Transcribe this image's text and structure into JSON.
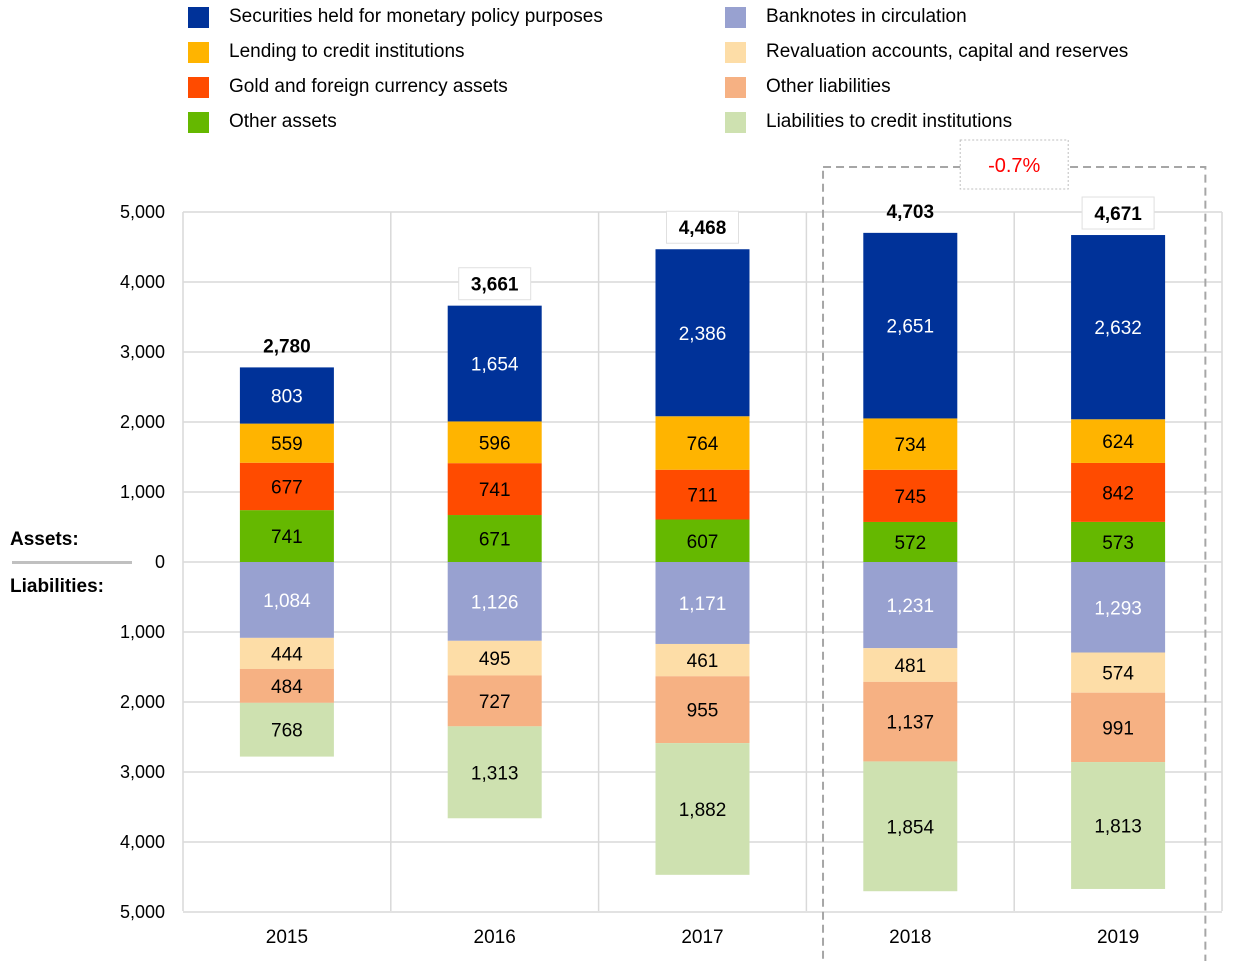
{
  "chart_data": {
    "type": "bar",
    "stacked": true,
    "categories": [
      "2015",
      "2016",
      "2017",
      "2018",
      "2019"
    ],
    "assets_label": "Assets:",
    "liabilities_label": "Liabilities:",
    "y_ticks": [
      "5,000",
      "4,000",
      "3,000",
      "2,000",
      "1,000",
      "0",
      "1,000",
      "2,000",
      "3,000",
      "4,000",
      "5,000"
    ],
    "ylim": [
      -5000,
      5000
    ],
    "grid": true,
    "legend_position": "top",
    "assets": [
      {
        "name": "Other assets",
        "color": "#65B800",
        "text_color": "#000000",
        "values": [
          741,
          671,
          607,
          572,
          573
        ],
        "labels": [
          "741",
          "671",
          "607",
          "572",
          "573"
        ]
      },
      {
        "name": "Gold and foreign currency assets",
        "color": "#FF4B00",
        "text_color": "#000000",
        "values": [
          677,
          741,
          711,
          745,
          842
        ],
        "labels": [
          "677",
          "741",
          "711",
          "745",
          "842"
        ]
      },
      {
        "name": "Lending to credit institutions",
        "color": "#FFB400",
        "text_color": "#000000",
        "values": [
          559,
          596,
          764,
          734,
          624
        ],
        "labels": [
          "559",
          "596",
          "764",
          "734",
          "624"
        ]
      },
      {
        "name": "Securities held for monetary policy purposes",
        "color": "#003299",
        "text_color": "#FFFFFF",
        "values": [
          803,
          1654,
          2386,
          2651,
          2632
        ],
        "labels": [
          "803",
          "1,654",
          "2,386",
          "2,651",
          "2,632"
        ]
      }
    ],
    "liabilities": [
      {
        "name": "Banknotes in circulation",
        "color": "#98A1D0",
        "text_color": "#FFFFFF",
        "values": [
          1084,
          1126,
          1171,
          1231,
          1293
        ],
        "labels": [
          "1,084",
          "1,126",
          "1,171",
          "1,231",
          "1,293"
        ]
      },
      {
        "name": "Revaluation accounts, capital and reserves",
        "color": "#FDDDA7",
        "text_color": "#000000",
        "values": [
          444,
          495,
          461,
          481,
          574
        ],
        "labels": [
          "444",
          "495",
          "461",
          "481",
          "574"
        ]
      },
      {
        "name": "Other liabilities",
        "color": "#F6B183",
        "text_color": "#000000",
        "values": [
          484,
          727,
          955,
          1137,
          991
        ],
        "labels": [
          "484",
          "727",
          "955",
          "1,137",
          "991"
        ]
      },
      {
        "name": "Liabilities to credit institutions",
        "color": "#CEE1B0",
        "text_color": "#000000",
        "values": [
          768,
          1313,
          1882,
          1854,
          1813
        ],
        "labels": [
          "768",
          "1,313",
          "1,882",
          "1,854",
          "1,813"
        ]
      }
    ],
    "totals": [
      2780,
      3661,
      4468,
      4703,
      4671
    ],
    "total_labels": [
      "2,780",
      "3,661",
      "4,468",
      "4,703",
      "4,671"
    ],
    "annotation": {
      "text": "-0.7%",
      "color": "#FF0000",
      "spans": [
        "2018",
        "2019"
      ]
    },
    "legend": [
      {
        "name": "Securities held for monetary policy purposes",
        "color": "#003299"
      },
      {
        "name": "Lending to credit institutions",
        "color": "#FFB400"
      },
      {
        "name": "Gold and foreign currency assets",
        "color": "#FF4B00"
      },
      {
        "name": "Other assets",
        "color": "#65B800"
      },
      {
        "name": "Banknotes in circulation",
        "color": "#98A1D0"
      },
      {
        "name": "Revaluation accounts, capital and reserves",
        "color": "#FDDDA7"
      },
      {
        "name": "Other liabilities",
        "color": "#F6B183"
      },
      {
        "name": "Liabilities to credit institutions",
        "color": "#CEE1B0"
      }
    ]
  }
}
